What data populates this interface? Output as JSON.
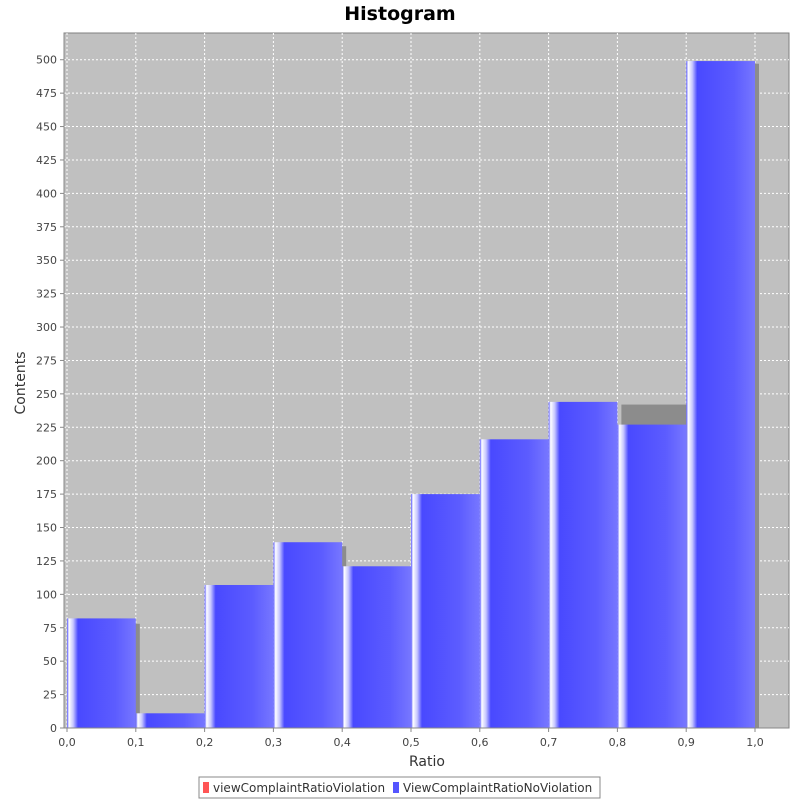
{
  "chart_data": {
    "type": "bar",
    "title": "Histogram",
    "xlabel": "Ratio",
    "ylabel": "Contents",
    "xlim": [
      0.0,
      1.0
    ],
    "ylim": [
      0,
      520
    ],
    "x_ticks": [
      "0,0",
      "0,1",
      "0,2",
      "0,3",
      "0,4",
      "0,5",
      "0,6",
      "0,7",
      "0,8",
      "0,9",
      "1,0"
    ],
    "y_ticks": [
      "0",
      "25",
      "50",
      "75",
      "100",
      "125",
      "150",
      "175",
      "200",
      "225",
      "250",
      "275",
      "300",
      "325",
      "350",
      "375",
      "400",
      "425",
      "450",
      "475",
      "500"
    ],
    "grid": true,
    "legend_position": "bottom",
    "series": [
      {
        "name": "viewComplaintRatioViolation",
        "color": "#ff5555",
        "bins": [
          [
            0.0,
            0.1
          ],
          [
            0.1,
            0.2
          ],
          [
            0.2,
            0.3
          ],
          [
            0.3,
            0.4
          ],
          [
            0.4,
            0.5
          ],
          [
            0.5,
            0.6
          ],
          [
            0.6,
            0.7
          ],
          [
            0.7,
            0.8
          ],
          [
            0.8,
            0.9
          ],
          [
            0.9,
            1.0
          ]
        ],
        "values": [
          78,
          0,
          0,
          136,
          0,
          0,
          0,
          0,
          242,
          497
        ]
      },
      {
        "name": "ViewComplaintRatioNoViolation",
        "color": "#5555ff",
        "bins": [
          [
            0.0,
            0.1
          ],
          [
            0.1,
            0.2
          ],
          [
            0.2,
            0.3
          ],
          [
            0.3,
            0.4
          ],
          [
            0.4,
            0.5
          ],
          [
            0.5,
            0.6
          ],
          [
            0.6,
            0.7
          ],
          [
            0.7,
            0.8
          ],
          [
            0.8,
            0.9
          ],
          [
            0.9,
            1.0
          ]
        ],
        "values": [
          82,
          11,
          107,
          139,
          121,
          175,
          216,
          244,
          227,
          499
        ]
      }
    ]
  }
}
